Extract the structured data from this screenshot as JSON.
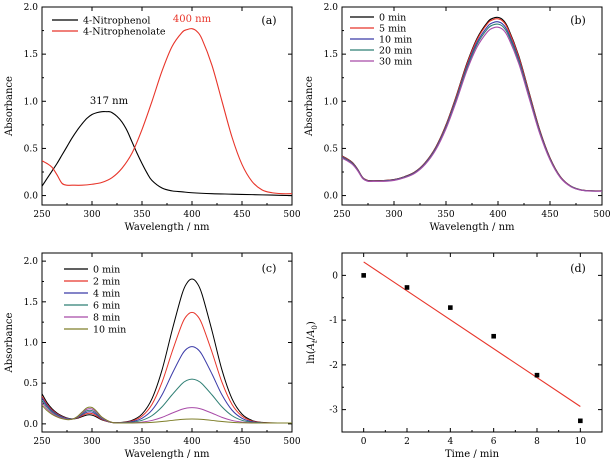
{
  "colors": {
    "black": "#000000",
    "red": "#e8352a",
    "blue": "#3a3aa8",
    "teal": "#2f7f74",
    "purple": "#a84aa8",
    "olive": "#7f7f2a",
    "brown": "#7a2a2a"
  },
  "chart_data": [
    {
      "panel": "(a)",
      "type": "line",
      "xlabel": "Wavelength / nm",
      "ylabel": "Absorbance",
      "xlim": [
        250,
        500
      ],
      "ylim": [
        -0.1,
        2.0
      ],
      "xticks": [
        250,
        300,
        350,
        400,
        450,
        500
      ],
      "yticks": [
        0.0,
        0.5,
        1.0,
        1.5,
        2.0
      ],
      "legend_position": "top-left",
      "series": [
        {
          "name": "4-Nitrophenol",
          "color": "black",
          "x": [
            250,
            255,
            260,
            265,
            270,
            275,
            280,
            285,
            290,
            295,
            300,
            305,
            310,
            315,
            317,
            320,
            325,
            330,
            335,
            340,
            345,
            350,
            355,
            360,
            370,
            380,
            390,
            400,
            420,
            440,
            460,
            480,
            500
          ],
          "y": [
            0.1,
            0.18,
            0.26,
            0.34,
            0.43,
            0.52,
            0.61,
            0.69,
            0.76,
            0.82,
            0.86,
            0.88,
            0.89,
            0.89,
            0.89,
            0.88,
            0.84,
            0.78,
            0.69,
            0.57,
            0.45,
            0.34,
            0.24,
            0.16,
            0.08,
            0.05,
            0.04,
            0.03,
            0.02,
            0.015,
            0.01,
            0.005,
            0.0
          ]
        },
        {
          "name": "4-Nitrophenolate",
          "color": "red",
          "x": [
            250,
            255,
            260,
            265,
            270,
            275,
            280,
            290,
            300,
            310,
            320,
            330,
            340,
            350,
            360,
            370,
            380,
            390,
            395,
            400,
            405,
            410,
            420,
            430,
            440,
            450,
            460,
            470,
            480,
            490,
            500
          ],
          "y": [
            0.37,
            0.34,
            0.3,
            0.22,
            0.13,
            0.11,
            0.11,
            0.11,
            0.12,
            0.14,
            0.19,
            0.29,
            0.45,
            0.7,
            1.0,
            1.32,
            1.58,
            1.73,
            1.76,
            1.77,
            1.74,
            1.66,
            1.38,
            1.0,
            0.62,
            0.33,
            0.15,
            0.06,
            0.03,
            0.02,
            0.02
          ]
        }
      ],
      "annotations": [
        {
          "text": "317 nm",
          "x": 317,
          "y": 0.97,
          "color": "black"
        },
        {
          "text": "400 nm",
          "x": 400,
          "y": 1.84,
          "color": "red"
        }
      ]
    },
    {
      "panel": "(b)",
      "type": "line",
      "xlabel": "Wavelength / nm",
      "ylabel": "Absorbance",
      "xlim": [
        250,
        500
      ],
      "ylim": [
        -0.1,
        2.0
      ],
      "xticks": [
        250,
        300,
        350,
        400,
        450,
        500
      ],
      "yticks": [
        0.0,
        0.5,
        1.0,
        1.5,
        2.0
      ],
      "legend_position": "top-left",
      "x": [
        250,
        255,
        260,
        265,
        270,
        275,
        280,
        290,
        300,
        310,
        320,
        330,
        340,
        350,
        360,
        370,
        380,
        390,
        395,
        400,
        405,
        410,
        420,
        430,
        440,
        450,
        460,
        470,
        480,
        490,
        500
      ],
      "series": [
        {
          "name": "0 min",
          "color": "black",
          "scale": 1.0
        },
        {
          "name": "5 min",
          "color": "red",
          "scale": 0.992
        },
        {
          "name": "10 min",
          "color": "blue",
          "scale": 0.975
        },
        {
          "name": "20 min",
          "color": "teal",
          "scale": 0.962
        },
        {
          "name": "30 min",
          "color": "purple",
          "scale": 0.945
        }
      ],
      "base_values": [
        0.42,
        0.39,
        0.35,
        0.28,
        0.19,
        0.16,
        0.16,
        0.16,
        0.17,
        0.2,
        0.25,
        0.35,
        0.51,
        0.75,
        1.06,
        1.4,
        1.67,
        1.84,
        1.88,
        1.89,
        1.86,
        1.77,
        1.48,
        1.09,
        0.7,
        0.4,
        0.2,
        0.1,
        0.06,
        0.05,
        0.05
      ]
    },
    {
      "panel": "(c)",
      "type": "line",
      "xlabel": "Wavelength / nm",
      "ylabel": "Absorbance",
      "xlim": [
        250,
        500
      ],
      "ylim": [
        -0.1,
        2.1
      ],
      "xticks": [
        250,
        300,
        350,
        400,
        450,
        500
      ],
      "yticks": [
        0.0,
        0.5,
        1.0,
        1.5,
        2.0
      ],
      "legend_position": "top-left",
      "x": [
        250,
        255,
        260,
        265,
        270,
        275,
        280,
        285,
        290,
        295,
        300,
        305,
        310,
        320,
        330,
        340,
        350,
        360,
        370,
        380,
        390,
        395,
        400,
        405,
        410,
        420,
        430,
        440,
        450,
        460,
        470,
        480,
        500
      ],
      "series": [
        {
          "name": "0 min",
          "color": "black",
          "peak": 1.77,
          "base": 0.36
        },
        {
          "name": "2 min",
          "color": "red",
          "peak": 1.36,
          "base": 0.33
        },
        {
          "name": "4 min",
          "color": "blue",
          "peak": 0.94,
          "base": 0.31
        },
        {
          "name": "6 min",
          "color": "teal",
          "peak": 0.54,
          "base": 0.28
        },
        {
          "name": "8 min",
          "color": "purple",
          "peak": 0.19,
          "base": 0.25
        },
        {
          "name": "10 min",
          "color": "olive",
          "peak": 0.05,
          "base": 0.22
        }
      ]
    },
    {
      "panel": "(d)",
      "type": "scatter",
      "xlabel": "Time / min",
      "ylabel": "ln(At/A0)",
      "xlim": [
        -1,
        11
      ],
      "ylim": [
        -3.5,
        0.5
      ],
      "xticks": [
        0,
        2,
        4,
        6,
        8,
        10
      ],
      "yticks": [
        0,
        -1,
        -2,
        -3
      ],
      "points": {
        "x": [
          0,
          2,
          4,
          6,
          8,
          10
        ],
        "y": [
          0.0,
          -0.27,
          -0.72,
          -1.36,
          -2.23,
          -3.25
        ]
      },
      "fit_line": {
        "color": "red",
        "x": [
          0,
          10
        ],
        "y": [
          0.3,
          -2.93
        ]
      }
    }
  ]
}
